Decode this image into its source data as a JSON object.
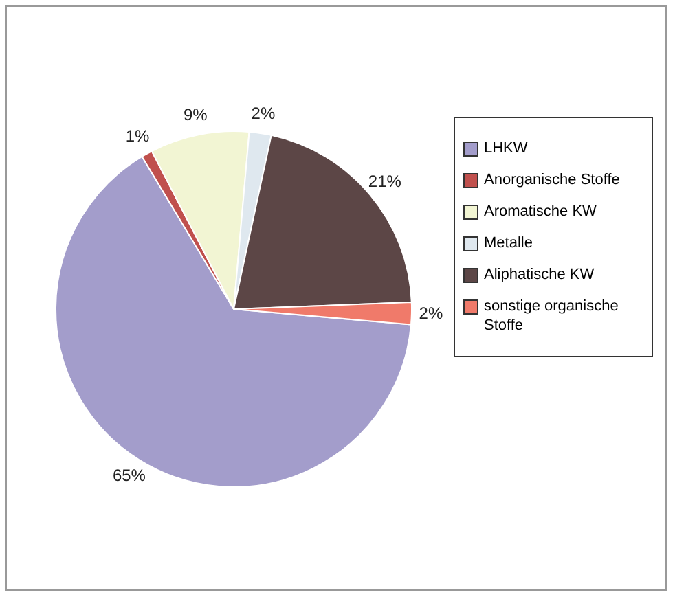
{
  "chart_data": {
    "type": "pie",
    "categories": [
      "LHKW",
      "Anorganische Stoffe",
      "Aromatische KW",
      "Metalle",
      "Aliphatische KW",
      "sonstige organische Stoffe"
    ],
    "values": [
      65,
      1,
      9,
      2,
      21,
      2
    ],
    "value_labels": [
      "65%",
      "1%",
      "9%",
      "2%",
      "21%",
      "2%"
    ],
    "colors": [
      "#a39dcb",
      "#c0504d",
      "#f2f5d3",
      "#dfe8ef",
      "#5c4646",
      "#f07a6a"
    ],
    "legend": "right"
  }
}
